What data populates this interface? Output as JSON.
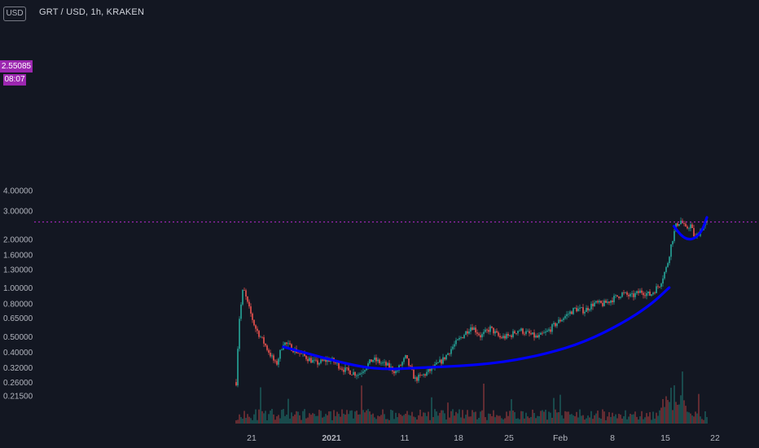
{
  "header": {
    "title": "GRT / USD, 1h, KRAKEN",
    "scale_button": "USD"
  },
  "price_marker": {
    "price": "2.55085",
    "countdown": "08:07",
    "color": "#9c27b0"
  },
  "chart_data": {
    "type": "candlestick",
    "scale": "log",
    "ylim": [
      0.19,
      4.0
    ],
    "y_ticks": [
      "4.00000",
      "3.00000",
      "2.55085",
      "2.00000",
      "1.60000",
      "1.30000",
      "1.00000",
      "0.80000",
      "0.65000",
      "0.50000",
      "0.40000",
      "0.32000",
      "0.26000",
      "0.21500"
    ],
    "x_ticks": [
      "21",
      "2021",
      "11",
      "18",
      "25",
      "Feb",
      "8",
      "15",
      "22"
    ],
    "current_price": 2.55085,
    "price_path": [
      {
        "t": 0.0,
        "p": 0.26
      },
      {
        "t": 0.006,
        "p": 0.62
      },
      {
        "t": 0.015,
        "p": 1.0
      },
      {
        "t": 0.025,
        "p": 0.78
      },
      {
        "t": 0.04,
        "p": 0.57
      },
      {
        "t": 0.06,
        "p": 0.45
      },
      {
        "t": 0.085,
        "p": 0.33
      },
      {
        "t": 0.1,
        "p": 0.46
      },
      {
        "t": 0.13,
        "p": 0.4
      },
      {
        "t": 0.17,
        "p": 0.34
      },
      {
        "t": 0.2,
        "p": 0.36
      },
      {
        "t": 0.23,
        "p": 0.31
      },
      {
        "t": 0.26,
        "p": 0.29
      },
      {
        "t": 0.29,
        "p": 0.36
      },
      {
        "t": 0.32,
        "p": 0.33
      },
      {
        "t": 0.34,
        "p": 0.3
      },
      {
        "t": 0.36,
        "p": 0.37
      },
      {
        "t": 0.38,
        "p": 0.27
      },
      {
        "t": 0.4,
        "p": 0.29
      },
      {
        "t": 0.42,
        "p": 0.32
      },
      {
        "t": 0.44,
        "p": 0.36
      },
      {
        "t": 0.46,
        "p": 0.43
      },
      {
        "t": 0.48,
        "p": 0.5
      },
      {
        "t": 0.5,
        "p": 0.58
      },
      {
        "t": 0.52,
        "p": 0.5
      },
      {
        "t": 0.54,
        "p": 0.56
      },
      {
        "t": 0.56,
        "p": 0.49
      },
      {
        "t": 0.58,
        "p": 0.5
      },
      {
        "t": 0.6,
        "p": 0.55
      },
      {
        "t": 0.62,
        "p": 0.52
      },
      {
        "t": 0.64,
        "p": 0.49
      },
      {
        "t": 0.66,
        "p": 0.53
      },
      {
        "t": 0.68,
        "p": 0.6
      },
      {
        "t": 0.7,
        "p": 0.67
      },
      {
        "t": 0.72,
        "p": 0.74
      },
      {
        "t": 0.74,
        "p": 0.72
      },
      {
        "t": 0.76,
        "p": 0.8
      },
      {
        "t": 0.78,
        "p": 0.79
      },
      {
        "t": 0.8,
        "p": 0.85
      },
      {
        "t": 0.82,
        "p": 0.92
      },
      {
        "t": 0.84,
        "p": 0.88
      },
      {
        "t": 0.86,
        "p": 0.95
      },
      {
        "t": 0.88,
        "p": 0.9
      },
      {
        "t": 0.9,
        "p": 1.05
      },
      {
        "t": 0.915,
        "p": 1.35
      },
      {
        "t": 0.925,
        "p": 1.9
      },
      {
        "t": 0.935,
        "p": 2.45
      },
      {
        "t": 0.945,
        "p": 2.6
      },
      {
        "t": 0.955,
        "p": 2.3
      },
      {
        "t": 0.965,
        "p": 2.45
      },
      {
        "t": 0.975,
        "p": 2.0
      },
      {
        "t": 0.985,
        "p": 2.25
      },
      {
        "t": 1.0,
        "p": 2.55
      }
    ],
    "annotations": [
      {
        "type": "curve",
        "color": "#0000ff",
        "points": [
          {
            "t": 0.1,
            "p": 0.43
          },
          {
            "t": 0.22,
            "p": 0.345
          },
          {
            "t": 0.3,
            "p": 0.31
          },
          {
            "t": 0.4,
            "p": 0.32
          },
          {
            "t": 0.5,
            "p": 0.33
          },
          {
            "t": 0.58,
            "p": 0.35
          },
          {
            "t": 0.66,
            "p": 0.39
          },
          {
            "t": 0.74,
            "p": 0.46
          },
          {
            "t": 0.82,
            "p": 0.6
          },
          {
            "t": 0.88,
            "p": 0.78
          },
          {
            "t": 0.92,
            "p": 1.0
          }
        ]
      },
      {
        "type": "curve",
        "color": "#0000ff",
        "points": [
          {
            "t": 0.93,
            "p": 2.4
          },
          {
            "t": 0.945,
            "p": 2.1
          },
          {
            "t": 0.96,
            "p": 1.98
          },
          {
            "t": 0.975,
            "p": 2.02
          },
          {
            "t": 0.99,
            "p": 2.25
          },
          {
            "t": 1.0,
            "p": 2.72
          }
        ]
      }
    ],
    "colors": {
      "up": "#26a69a",
      "down": "#ef5350",
      "background": "#131722",
      "axis_text": "#b2b5be",
      "price_line": "#9c27b0"
    }
  }
}
